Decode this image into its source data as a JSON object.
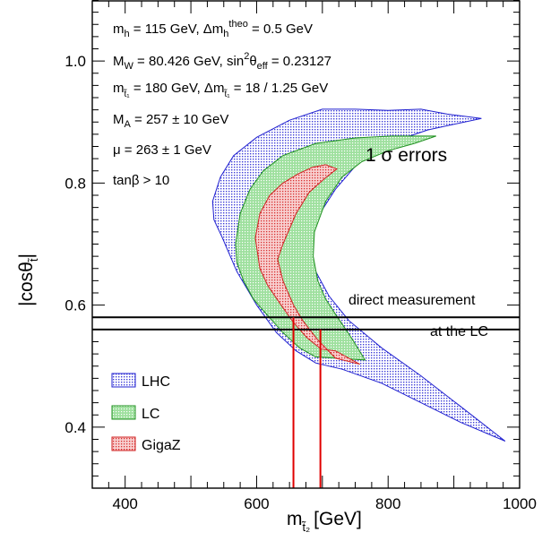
{
  "chart_data": {
    "type": "area",
    "xlabel": "m",
    "xlabel_sub": "t̃₂",
    "xlabel_unit": "[GeV]",
    "ylabel": "|cosθ",
    "ylabel_sub": "t̃",
    "ylabel_close": "|",
    "xlim": [
      350,
      1000
    ],
    "ylim": [
      0.3,
      1.1
    ],
    "x_ticks": [
      400,
      600,
      800,
      1000
    ],
    "y_ticks": [
      0.4,
      0.6,
      0.8,
      1.0
    ],
    "x_tick_labels": [
      "400",
      "600",
      "800",
      "1000"
    ],
    "y_tick_labels": [
      "0.4",
      "0.6",
      "0.8",
      "1.0"
    ],
    "annotations": [
      {
        "main": "m",
        "sub": "h",
        "rest": " = 115 GeV, Δm",
        "sub2": "h",
        "sup2": "theo",
        "rest2": " = 0.5 GeV"
      },
      {
        "main": "M",
        "sub": "W",
        "rest": " = 80.426 GeV, sin",
        "sup2": "2",
        "rest2": "θ",
        "sub3": "eff",
        "rest3": " = 0.23127"
      },
      {
        "main": "m",
        "sub": "t̃₁",
        "rest": " = 180 GeV, Δm",
        "sub2": "t̃₁",
        "rest2": " = 18 / 1.25 GeV"
      },
      {
        "main": "M",
        "sub": "A",
        "rest": " = 257 ± 10 GeV"
      },
      {
        "main": "μ = 263 ± 1 GeV"
      },
      {
        "main": "tanβ > 10"
      }
    ],
    "errors_label": "1 σ errors",
    "direct_measurement": {
      "label_top": "direct measurement",
      "label_bottom": "at the LC",
      "y_lines": [
        0.58,
        0.56
      ]
    },
    "series": [
      {
        "name": "LHC",
        "color": "#2020d0",
        "fill": "#c8d4f4",
        "polygon": [
          [
            533,
            0.77
          ],
          [
            545,
            0.81
          ],
          [
            565,
            0.845
          ],
          [
            600,
            0.875
          ],
          [
            650,
            0.903
          ],
          [
            700,
            0.921
          ],
          [
            750,
            0.921
          ],
          [
            800,
            0.919
          ],
          [
            850,
            0.921
          ],
          [
            890,
            0.913
          ],
          [
            942,
            0.906
          ],
          [
            860,
            0.887
          ],
          [
            800,
            0.865
          ],
          [
            760,
            0.84
          ],
          [
            720,
            0.79
          ],
          [
            690,
            0.74
          ],
          [
            680,
            0.7
          ],
          [
            690,
            0.655
          ],
          [
            710,
            0.615
          ],
          [
            740,
            0.575
          ],
          [
            790,
            0.53
          ],
          [
            850,
            0.484
          ],
          [
            910,
            0.434
          ],
          [
            978,
            0.377
          ],
          [
            910,
            0.408
          ],
          [
            850,
            0.44
          ],
          [
            790,
            0.472
          ],
          [
            730,
            0.495
          ],
          [
            690,
            0.505
          ],
          [
            660,
            0.525
          ],
          [
            630,
            0.555
          ],
          [
            600,
            0.6
          ],
          [
            570,
            0.655
          ],
          [
            548,
            0.71
          ],
          [
            535,
            0.74
          ]
        ]
      },
      {
        "name": "LC",
        "color": "#209020",
        "fill": "#b8ecb8",
        "polygon": [
          [
            568,
            0.7
          ],
          [
            575,
            0.75
          ],
          [
            590,
            0.79
          ],
          [
            610,
            0.82
          ],
          [
            640,
            0.845
          ],
          [
            690,
            0.865
          ],
          [
            750,
            0.874
          ],
          [
            805,
            0.877
          ],
          [
            873,
            0.877
          ],
          [
            840,
            0.865
          ],
          [
            800,
            0.853
          ],
          [
            760,
            0.835
          ],
          [
            730,
            0.81
          ],
          [
            705,
            0.77
          ],
          [
            688,
            0.72
          ],
          [
            686,
            0.68
          ],
          [
            693,
            0.64
          ],
          [
            705,
            0.61
          ],
          [
            720,
            0.585
          ],
          [
            745,
            0.545
          ],
          [
            765,
            0.51
          ],
          [
            720,
            0.513
          ],
          [
            690,
            0.515
          ],
          [
            665,
            0.53
          ],
          [
            640,
            0.555
          ],
          [
            615,
            0.585
          ],
          [
            595,
            0.61
          ],
          [
            580,
            0.64
          ],
          [
            570,
            0.67
          ]
        ]
      },
      {
        "name": "GigaZ",
        "color": "#d02020",
        "fill": "#f4c4c4",
        "polygon": [
          [
            598,
            0.71
          ],
          [
            605,
            0.75
          ],
          [
            620,
            0.78
          ],
          [
            640,
            0.8
          ],
          [
            663,
            0.815
          ],
          [
            685,
            0.826
          ],
          [
            705,
            0.83
          ],
          [
            722,
            0.823
          ],
          [
            703,
            0.807
          ],
          [
            680,
            0.785
          ],
          [
            660,
            0.75
          ],
          [
            640,
            0.7
          ],
          [
            632,
            0.675
          ],
          [
            640,
            0.64
          ],
          [
            656,
            0.6
          ],
          [
            670,
            0.575
          ],
          [
            693,
            0.543
          ],
          [
            720,
            0.513
          ],
          [
            757,
            0.503
          ],
          [
            720,
            0.525
          ],
          [
            698,
            0.528
          ],
          [
            676,
            0.547
          ],
          [
            655,
            0.573
          ],
          [
            636,
            0.602
          ],
          [
            617,
            0.632
          ],
          [
            605,
            0.66
          ]
        ]
      }
    ],
    "vertical_lines": [
      {
        "x": 656,
        "y_top": 0.58,
        "color": "#e00000"
      },
      {
        "x": 697,
        "y_top": 0.56,
        "color": "#e00000"
      }
    ],
    "legend_placement": "bottom-left",
    "grid": false
  }
}
